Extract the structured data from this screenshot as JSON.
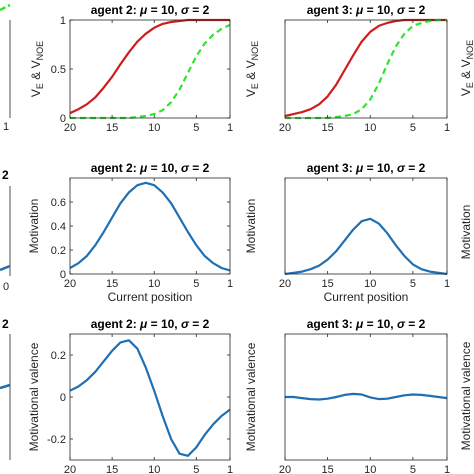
{
  "chart_data": [
    {
      "id": "r1c1",
      "type": "line",
      "title": "agent 2: μ = 10, σ = 2",
      "xlabel": "",
      "ylabel": "V_E & V_NOE",
      "xlim": [
        20,
        1
      ],
      "ylim": [
        0,
        1
      ],
      "xticks": [
        20,
        15,
        10,
        5,
        1
      ],
      "yticks": [
        0,
        0.5,
        1
      ],
      "series": [
        {
          "color": "#d01c1c",
          "dash": false,
          "x": [
            20,
            19,
            18,
            17,
            16,
            15,
            14,
            13,
            12,
            11,
            10,
            9,
            8,
            7,
            6,
            5,
            4,
            3,
            2,
            1
          ],
          "y": [
            0.05,
            0.09,
            0.14,
            0.21,
            0.31,
            0.42,
            0.55,
            0.67,
            0.78,
            0.86,
            0.92,
            0.96,
            0.98,
            0.99,
            1,
            1,
            1,
            1,
            1,
            1
          ]
        },
        {
          "color": "#2ee52e",
          "dash": true,
          "x": [
            20,
            19,
            18,
            17,
            16,
            15,
            14,
            13,
            12,
            11,
            10,
            9,
            8,
            7,
            6,
            5,
            4,
            3,
            2,
            1
          ],
          "y": [
            0,
            0,
            0,
            0,
            0,
            0,
            0,
            0,
            0.01,
            0.02,
            0.04,
            0.08,
            0.16,
            0.29,
            0.46,
            0.63,
            0.76,
            0.85,
            0.91,
            0.95
          ]
        }
      ]
    },
    {
      "id": "r1c2",
      "type": "line",
      "title": "agent 3: μ = 10, σ = 2",
      "xlabel": "",
      "ylabel": "V_E & V_NOE",
      "xlim": [
        20,
        1
      ],
      "ylim": [
        0,
        1
      ],
      "xticks": [
        20,
        15,
        10,
        5,
        1
      ],
      "yticks": [],
      "series": [
        {
          "color": "#d01c1c",
          "dash": false,
          "x": [
            20,
            19,
            18,
            17,
            16,
            15,
            14,
            13,
            12,
            11,
            10,
            9,
            8,
            7,
            6,
            5,
            4,
            3,
            2,
            1
          ],
          "y": [
            0.02,
            0.04,
            0.06,
            0.09,
            0.14,
            0.22,
            0.34,
            0.49,
            0.64,
            0.78,
            0.88,
            0.94,
            0.97,
            0.99,
            1,
            1,
            1,
            1,
            1,
            1
          ]
        },
        {
          "color": "#2ee52e",
          "dash": true,
          "x": [
            20,
            19,
            18,
            17,
            16,
            15,
            14,
            13,
            12,
            11,
            10,
            9,
            8,
            7,
            6,
            5,
            4,
            3,
            2,
            1
          ],
          "y": [
            0,
            0,
            0,
            0,
            0,
            0,
            0.01,
            0.02,
            0.04,
            0.09,
            0.19,
            0.35,
            0.55,
            0.73,
            0.86,
            0.94,
            0.97,
            0.99,
            1,
            1
          ]
        }
      ]
    },
    {
      "id": "r2c1",
      "type": "line",
      "title": "agent 2: μ = 10, σ = 2",
      "xlabel": "Current position",
      "ylabel": "Motivation",
      "xlim": [
        20,
        1
      ],
      "ylim": [
        0,
        0.8
      ],
      "xticks": [
        20,
        15,
        10,
        5,
        1
      ],
      "yticks": [
        0,
        0.2,
        0.4,
        0.6
      ],
      "series": [
        {
          "color": "#1f6fb4",
          "dash": false,
          "x": [
            20,
            19,
            18,
            17,
            16,
            15,
            14,
            13,
            12,
            11,
            10,
            9,
            8,
            7,
            6,
            5,
            4,
            3,
            2,
            1
          ],
          "y": [
            0.05,
            0.09,
            0.15,
            0.24,
            0.35,
            0.47,
            0.59,
            0.68,
            0.74,
            0.76,
            0.74,
            0.68,
            0.59,
            0.47,
            0.35,
            0.24,
            0.15,
            0.09,
            0.05,
            0.03
          ]
        }
      ]
    },
    {
      "id": "r2c2",
      "type": "line",
      "title": "agent 3: μ = 10, σ = 2",
      "xlabel": "Current position",
      "ylabel": "Motivation",
      "xlim": [
        20,
        1
      ],
      "ylim": [
        0,
        0.8
      ],
      "xticks": [
        20,
        15,
        10,
        5,
        1
      ],
      "yticks": [],
      "series": [
        {
          "color": "#1f6fb4",
          "dash": false,
          "x": [
            20,
            19,
            18,
            17,
            16,
            15,
            14,
            13,
            12,
            11,
            10,
            9,
            8,
            7,
            6,
            5,
            4,
            3,
            2,
            1
          ],
          "y": [
            0,
            0.01,
            0.02,
            0.04,
            0.07,
            0.12,
            0.19,
            0.28,
            0.37,
            0.44,
            0.46,
            0.42,
            0.34,
            0.24,
            0.15,
            0.08,
            0.04,
            0.02,
            0.01,
            0
          ]
        }
      ]
    },
    {
      "id": "r3c1",
      "type": "line",
      "title": "agent 2: μ = 10, σ = 2",
      "xlabel": "Current position",
      "ylabel": "Motivational valence",
      "xlim": [
        20,
        1
      ],
      "ylim": [
        -0.3,
        0.3
      ],
      "xticks": [
        20,
        15,
        10,
        5,
        1
      ],
      "yticks": [
        -0.2,
        0,
        0.2
      ],
      "series": [
        {
          "color": "#1f6fb4",
          "dash": false,
          "x": [
            20,
            19,
            18,
            17,
            16,
            15,
            14,
            13,
            12,
            11,
            10,
            9,
            8,
            7,
            6,
            5,
            4,
            3,
            2,
            1
          ],
          "y": [
            0.03,
            0.05,
            0.08,
            0.12,
            0.17,
            0.22,
            0.26,
            0.27,
            0.23,
            0.14,
            0.03,
            -0.09,
            -0.2,
            -0.27,
            -0.28,
            -0.24,
            -0.18,
            -0.13,
            -0.09,
            -0.06
          ]
        }
      ]
    },
    {
      "id": "r3c2",
      "type": "line",
      "title": "agent 3: μ = 10, σ = 2",
      "xlabel": "Current position",
      "ylabel": "Motivational valence",
      "xlim": [
        20,
        1
      ],
      "ylim": [
        -0.3,
        0.3
      ],
      "xticks": [
        20,
        15,
        10,
        5,
        1
      ],
      "yticks": [],
      "series": [
        {
          "color": "#1f6fb4",
          "dash": false,
          "x": [
            20,
            19,
            18,
            17,
            16,
            15,
            14,
            13,
            12,
            11,
            10,
            9,
            8,
            7,
            6,
            5,
            4,
            3,
            2,
            1
          ],
          "y": [
            0,
            0,
            -0.005,
            -0.01,
            -0.012,
            -0.008,
            0,
            0.01,
            0.015,
            0.012,
            -0.002,
            -0.01,
            -0.008,
            0,
            0.008,
            0.012,
            0.01,
            0.005,
            0,
            -0.005
          ]
        }
      ]
    }
  ],
  "partial": {
    "left_tick_1": "1",
    "left_tick_2": "0",
    "left_title_2": "2",
    "left_title_3": "2",
    "right_ylabel": "V_E & V_NOE",
    "right_ylabel_2": "Motivation",
    "right_ylabel_3": "Motivational valence"
  }
}
